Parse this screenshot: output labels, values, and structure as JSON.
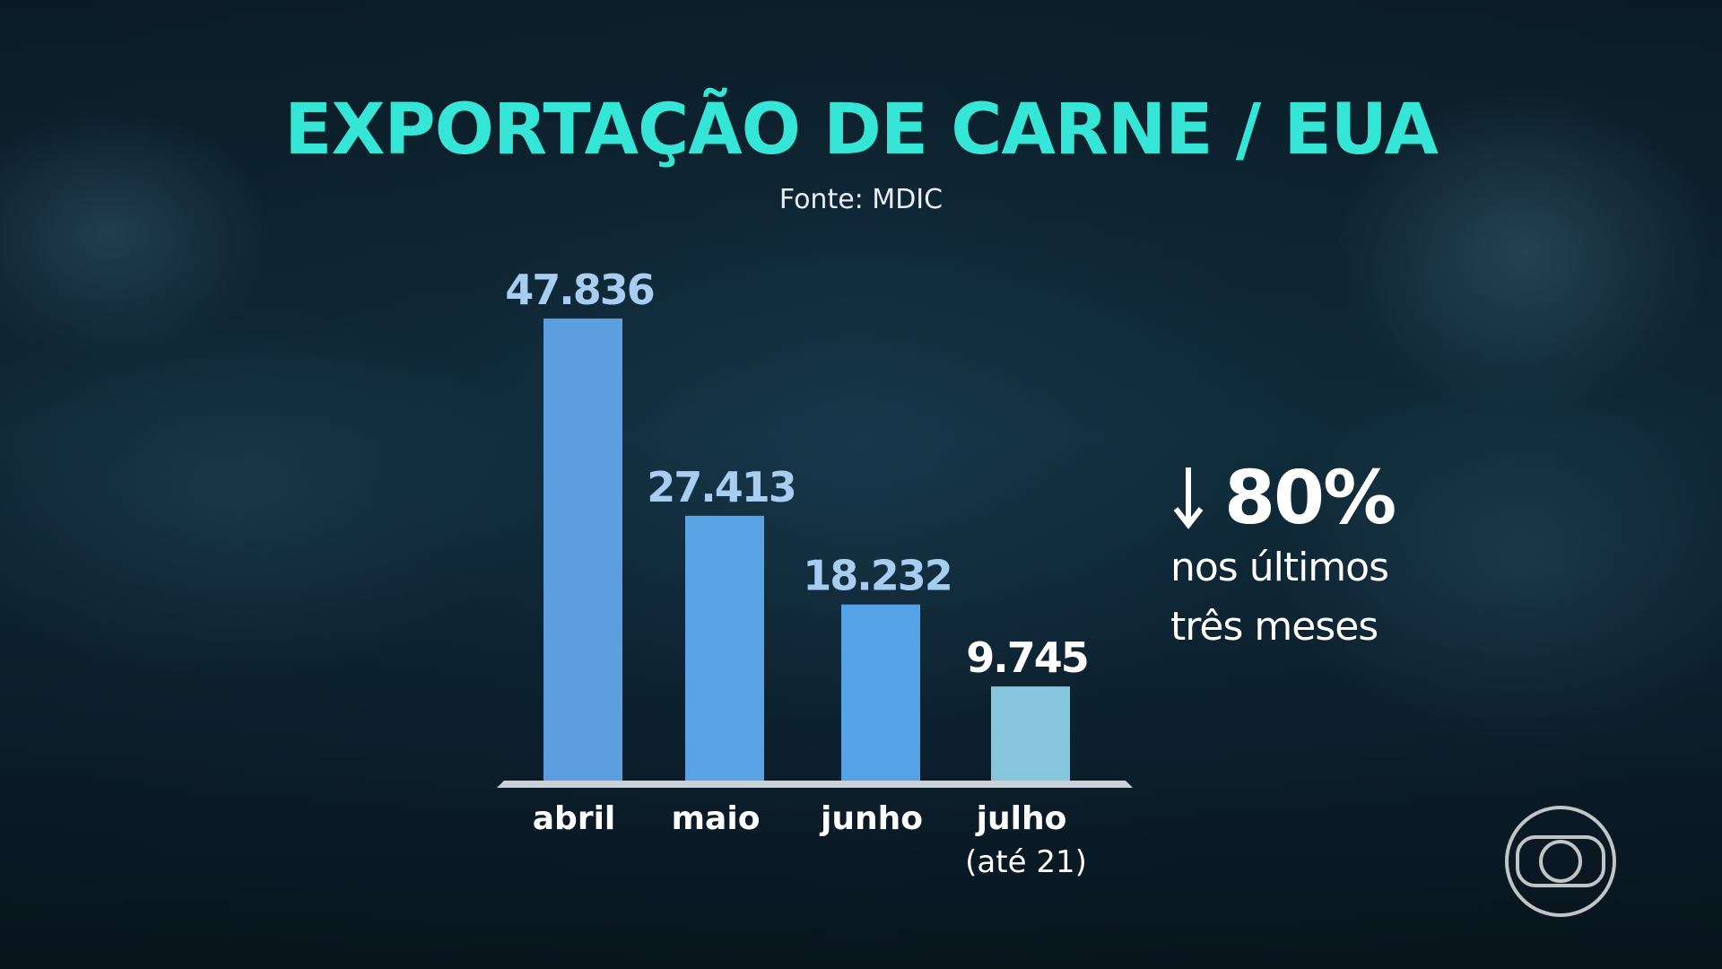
{
  "header": {
    "title": "EXPORTAÇÃO DE CARNE / EUA",
    "source": "Fonte: MDIC"
  },
  "chart_data": {
    "type": "bar",
    "title": "EXPORTAÇÃO DE CARNE / EUA",
    "subtitle": "Fonte: MDIC",
    "categories": [
      "abril",
      "maio",
      "junho",
      "julho"
    ],
    "category_notes": [
      "",
      "",
      "",
      "(até 21)"
    ],
    "values": [
      47836,
      27413,
      18232,
      9745
    ],
    "value_labels": [
      "47.836",
      "27.413",
      "18.232",
      "9.745"
    ],
    "ylim": [
      0,
      47836
    ],
    "grid": false,
    "bar_colors": [
      "#5c9fe0",
      "#5aa4e6",
      "#55a3e6",
      "#86c6dd"
    ],
    "label_colors": [
      "#a8cdf0",
      "#a8cdf0",
      "#a8cdf0",
      "#ffffff"
    ]
  },
  "callout": {
    "value": "80%",
    "line1": "nos últimos",
    "line2": "três meses",
    "icon": "down-arrow-icon"
  },
  "branding": {
    "logo": "globo-logo-icon"
  },
  "colors": {
    "title": "#35e6d6",
    "axis": "#c9d2d8"
  }
}
